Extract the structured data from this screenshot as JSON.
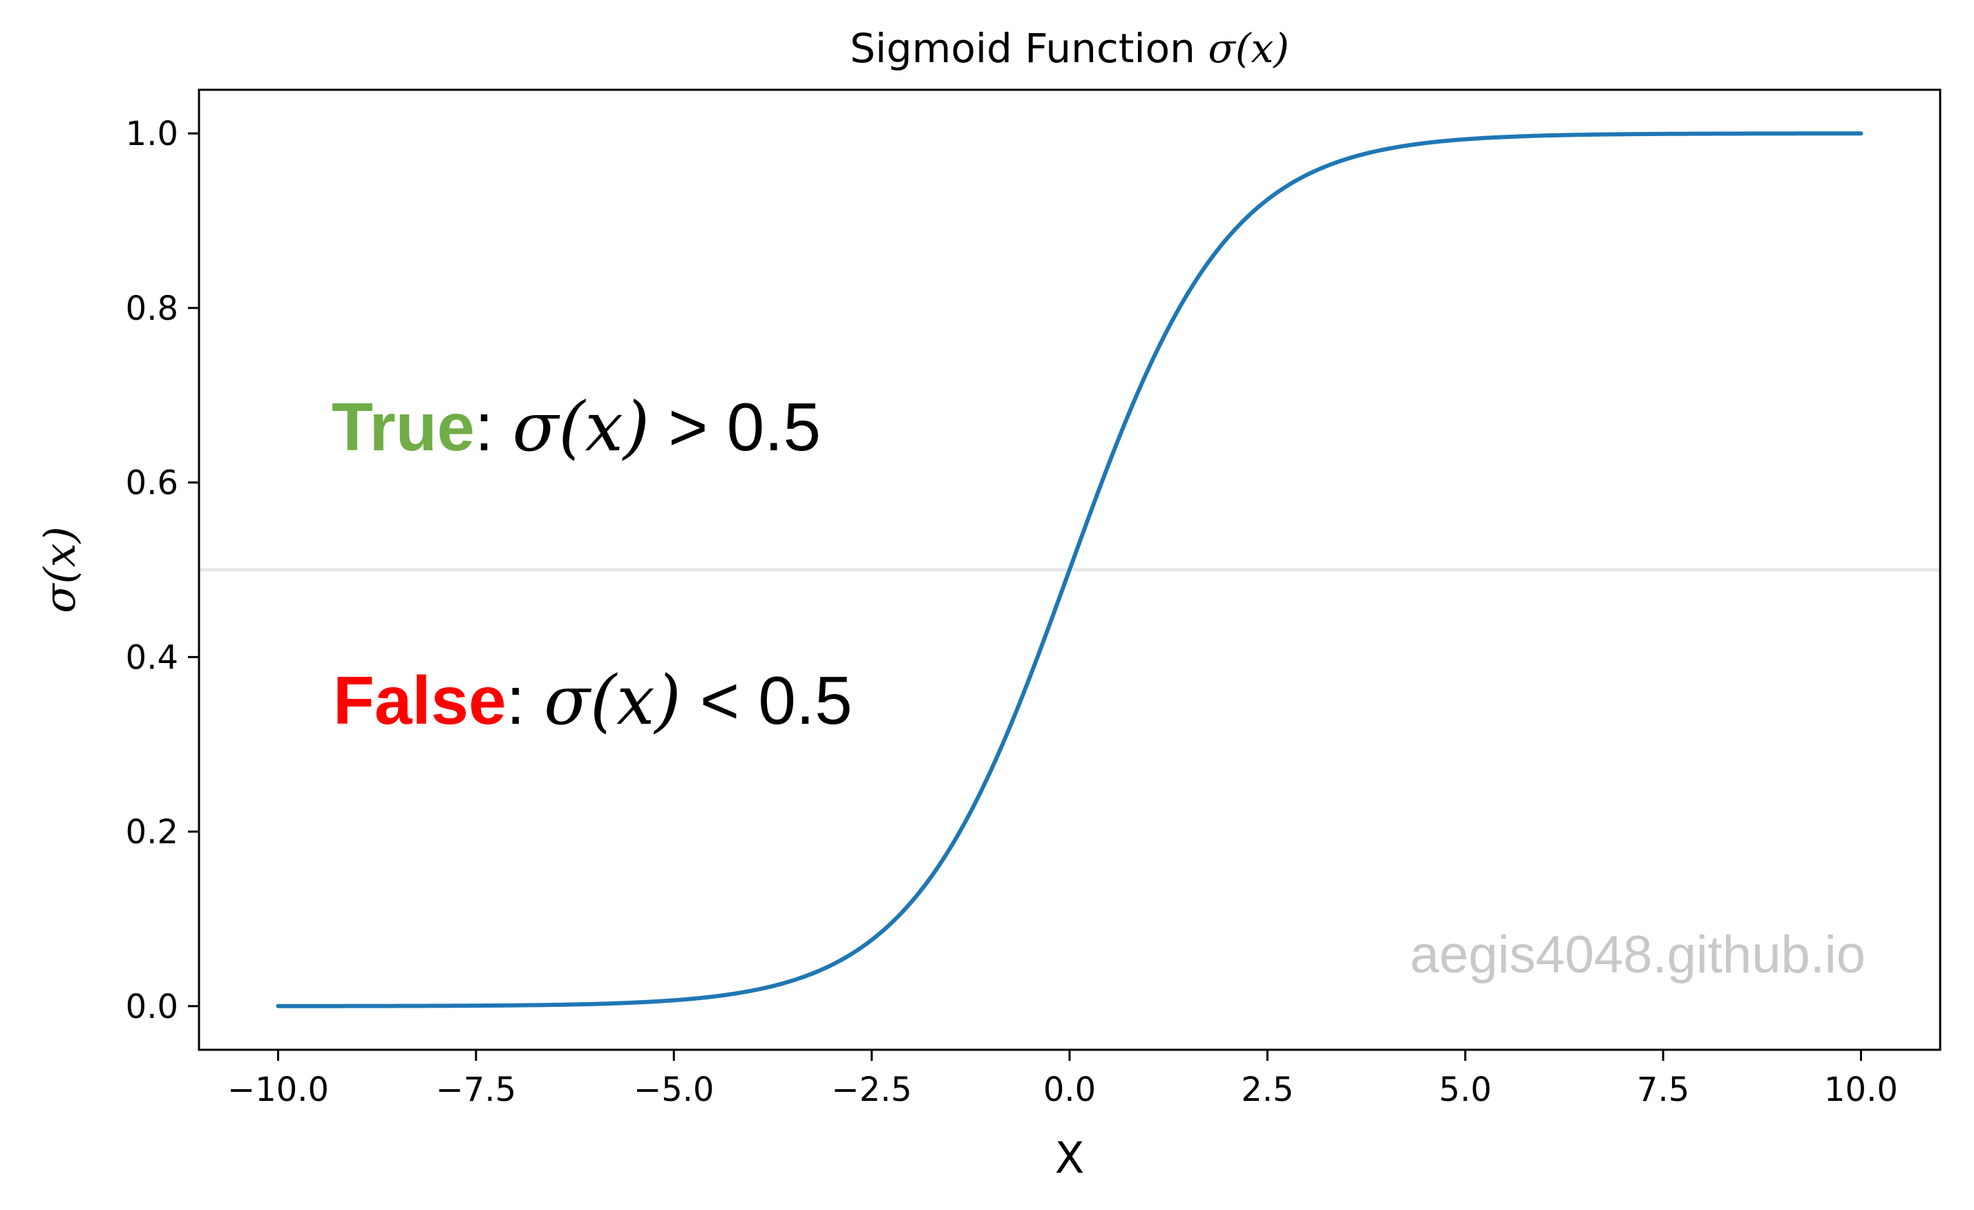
{
  "chart_data": {
    "type": "line",
    "title_plain": "Sigmoid Function ",
    "title_math": "σ(x)",
    "xlabel": "X",
    "ylabel": "σ(x)",
    "xlim": [
      -11,
      11
    ],
    "ylim": [
      -0.05,
      1.05
    ],
    "xticks": [
      -10,
      -7.5,
      -5,
      -2.5,
      0,
      2.5,
      5,
      7.5,
      10
    ],
    "xtick_labels": [
      "−10.0",
      "−7.5",
      "−5.0",
      "−2.5",
      "0.0",
      "2.5",
      "5.0",
      "7.5",
      "10.0"
    ],
    "yticks": [
      0,
      0.2,
      0.4,
      0.6,
      0.8,
      1.0
    ],
    "ytick_labels": [
      "0.0",
      "0.2",
      "0.4",
      "0.6",
      "0.8",
      "1.0"
    ],
    "grid": false,
    "series": [
      {
        "function": "sigmoid",
        "x_range": [
          -10,
          10
        ],
        "color": "#1f77b4"
      }
    ],
    "threshold_line": {
      "y": 0.5,
      "color": "#e8e8e8"
    },
    "annotations": {
      "true_word": "True",
      "true_color": "#70ad47",
      "true_rest_colon": ": ",
      "true_rest_math": "σ(x)",
      "true_rest_tail": " > 0.5",
      "false_word": "False",
      "false_color": "#ff0000",
      "false_rest_colon": ": ",
      "false_rest_math": "σ(x)",
      "false_rest_tail": " < 0.5"
    },
    "watermark": {
      "text": "aegis4048.github.io",
      "color": "#c8c8c8"
    }
  }
}
